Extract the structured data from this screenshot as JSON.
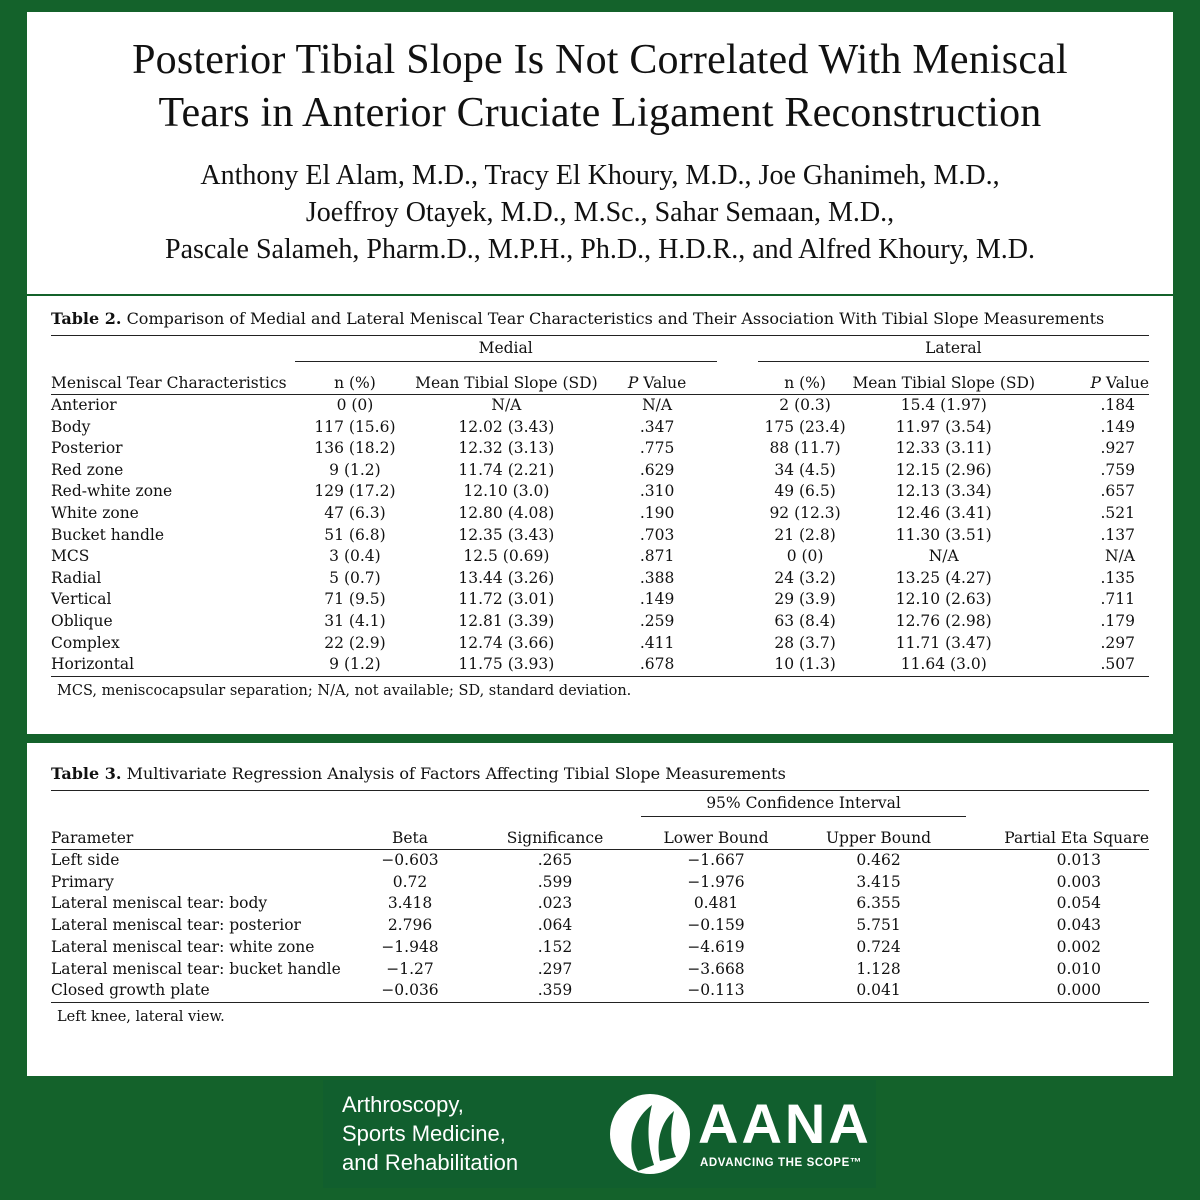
{
  "article": {
    "title_line1": "Posterior Tibial Slope Is Not Correlated With Meniscal",
    "title_line2": "Tears in Anterior Cruciate Ligament Reconstruction",
    "authors_line1": "Anthony El Alam, M.D., Tracy El Khoury, M.D., Joe Ghanimeh, M.D.,",
    "authors_line2": "Joeffroy Otayek, M.D., M.Sc., Sahar Semaan, M.D.,",
    "authors_line3": "Pascale Salameh, Pharm.D., M.P.H., Ph.D., H.D.R., and Alfred Khoury, M.D."
  },
  "table2": {
    "label": "Table 2.",
    "caption": "Comparison of Medial and Lateral Meniscal Tear Characteristics and Their Association With Tibial Slope Measurements",
    "group_medial": "Medial",
    "group_lateral": "Lateral",
    "col_characteristics": "Meniscal Tear Characteristics",
    "col_n": "n (%)",
    "col_mean": "Mean Tibial Slope (SD)",
    "col_p_italic": "P",
    "col_p_rest": " Value",
    "rows": [
      [
        "Anterior",
        "0 (0)",
        "N/A",
        "N/A",
        "2 (0.3)",
        "15.4 (1.97)",
        ".184"
      ],
      [
        "Body",
        "117 (15.6)",
        "12.02 (3.43)",
        ".347",
        "175 (23.4)",
        "11.97 (3.54)",
        ".149"
      ],
      [
        "Posterior",
        "136 (18.2)",
        "12.32 (3.13)",
        ".775",
        "88 (11.7)",
        "12.33 (3.11)",
        ".927"
      ],
      [
        "Red zone",
        "9 (1.2)",
        "11.74 (2.21)",
        ".629",
        "34 (4.5)",
        "12.15 (2.96)",
        ".759"
      ],
      [
        "Red-white zone",
        "129 (17.2)",
        "12.10 (3.0)",
        ".310",
        "49 (6.5)",
        "12.13 (3.34)",
        ".657"
      ],
      [
        "White zone",
        "47 (6.3)",
        "12.80 (4.08)",
        ".190",
        "92 (12.3)",
        "12.46 (3.41)",
        ".521"
      ],
      [
        "Bucket handle",
        "51 (6.8)",
        "12.35 (3.43)",
        ".703",
        "21 (2.8)",
        "11.30 (3.51)",
        ".137"
      ],
      [
        "MCS",
        "3 (0.4)",
        "12.5 (0.69)",
        ".871",
        "0 (0)",
        "N/A",
        "N/A"
      ],
      [
        "Radial",
        "5 (0.7)",
        "13.44 (3.26)",
        ".388",
        "24 (3.2)",
        "13.25 (4.27)",
        ".135"
      ],
      [
        "Vertical",
        "71 (9.5)",
        "11.72 (3.01)",
        ".149",
        "29 (3.9)",
        "12.10 (2.63)",
        ".711"
      ],
      [
        "Oblique",
        "31 (4.1)",
        "12.81 (3.39)",
        ".259",
        "63 (8.4)",
        "12.76 (2.98)",
        ".179"
      ],
      [
        "Complex",
        "22 (2.9)",
        "12.74 (3.66)",
        ".411",
        "28 (3.7)",
        "11.71 (3.47)",
        ".297"
      ],
      [
        "Horizontal",
        "9 (1.2)",
        "11.75 (3.93)",
        ".678",
        "10 (1.3)",
        "11.64 (3.0)",
        ".507"
      ]
    ],
    "footnote": "MCS, meniscocapsular separation; N/A, not available; SD, standard deviation."
  },
  "table3": {
    "label": "Table 3.",
    "caption": "Multivariate Regression Analysis of Factors Affecting Tibial Slope Measurements",
    "group_ci": "95% Confidence Interval",
    "col_parameter": "Parameter",
    "col_beta": "Beta",
    "col_significance": "Significance",
    "col_lower": "Lower Bound",
    "col_upper": "Upper Bound",
    "col_eta": "Partial Eta Square",
    "rows": [
      [
        "Left side",
        "−0.603",
        ".265",
        "−1.667",
        "0.462",
        "0.013"
      ],
      [
        "Primary",
        "0.72",
        ".599",
        "−1.976",
        "3.415",
        "0.003"
      ],
      [
        "Lateral meniscal tear: body",
        "3.418",
        ".023",
        "0.481",
        "6.355",
        "0.054"
      ],
      [
        "Lateral meniscal tear: posterior",
        "2.796",
        ".064",
        "−0.159",
        "5.751",
        "0.043"
      ],
      [
        "Lateral meniscal tear: white zone",
        "−1.948",
        ".152",
        "−4.619",
        "0.724",
        "0.002"
      ],
      [
        "Lateral meniscal tear: bucket handle",
        "−1.27",
        ".297",
        "−3.668",
        "1.128",
        "0.010"
      ],
      [
        "Closed growth plate",
        "−0.036",
        ".359",
        "−0.113",
        "0.041",
        "0.000"
      ]
    ],
    "footnote": "Left knee, lateral view."
  },
  "branding": {
    "journal_line1": "Arthroscopy,",
    "journal_line2": "Sports Medicine,",
    "journal_line3": "and Rehabilitation",
    "org_name": "AANA",
    "org_tagline": "ADVANCING THE SCOPE™",
    "colors": {
      "background": "#14622b",
      "logo_band": "#115f2e",
      "text": "#111111"
    }
  }
}
